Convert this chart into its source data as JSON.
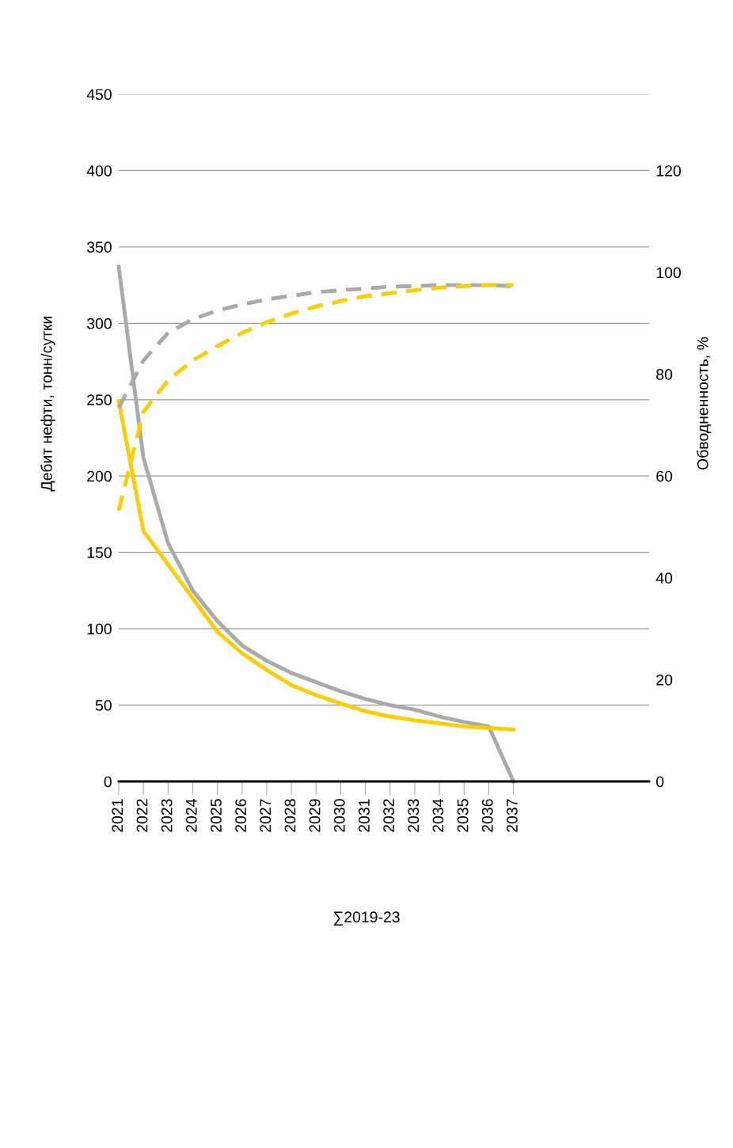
{
  "chart_data": {
    "type": "line",
    "ylabel": "Дебит нефти, тонн/сутки",
    "y2label": "Обводненность, %",
    "x": [
      2021,
      2022,
      2023,
      2024,
      2025,
      2026,
      2027,
      2028,
      2029,
      2030,
      2031,
      2032,
      2033,
      2034,
      2035,
      2036,
      2037
    ],
    "xlim": [
      2021,
      2042.5
    ],
    "xticks": [
      2021,
      2022,
      2023,
      2024,
      2025,
      2026,
      2027,
      2028,
      2029,
      2030,
      2031,
      2032,
      2033,
      2034,
      2035,
      2036,
      2037
    ],
    "ylim": [
      0,
      450
    ],
    "yticks": [
      0,
      50,
      100,
      150,
      200,
      250,
      300,
      350,
      400,
      450
    ],
    "y2lim": [
      0,
      135
    ],
    "y2ticks": [
      0,
      20,
      40,
      60,
      80,
      100,
      120
    ],
    "grid": "y",
    "legend": false,
    "marker": "none",
    "series": [
      {
        "color": "#aaaaaa",
        "line_style": "solid",
        "values": [
          337,
          212,
          156,
          125,
          105,
          89,
          79,
          71,
          65,
          59,
          54,
          50,
          47,
          42.5,
          39,
          36,
          0
        ]
      },
      {
        "color": "#ffcc00",
        "line_style": "solid",
        "values": [
          249,
          164,
          142,
          120,
          98,
          84,
          73,
          63,
          56.5,
          51,
          46,
          42.5,
          40,
          38,
          36,
          35,
          34
        ]
      },
      {
        "color": "#aaaaaa",
        "line_style": "dashed",
        "axis": "y2",
        "values": [
          73.4,
          82.7,
          88.1,
          90.8,
          92.5,
          93.7,
          94.7,
          95.4,
          96.1,
          96.5,
          96.8,
          97.2,
          97.3,
          97.5,
          97.5,
          97.5,
          97.3
        ]
      },
      {
        "color": "#ffcc00",
        "line_style": "dashed",
        "axis": "y2",
        "values": [
          53.2,
          72.6,
          78.8,
          82.7,
          85.5,
          88.1,
          90.2,
          91.9,
          93.3,
          94.4,
          95.3,
          95.9,
          96.5,
          97,
          97.3,
          97.5,
          97.5
        ]
      }
    ],
    "annotations": [
      "∑2019-23"
    ]
  }
}
